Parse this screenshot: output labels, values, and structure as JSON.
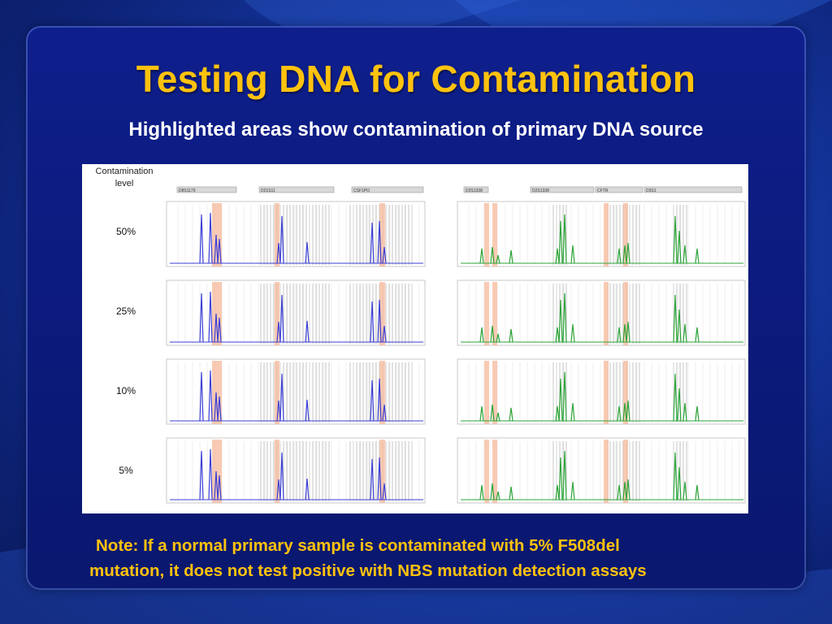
{
  "slide": {
    "title": "Testing DNA for Contamination",
    "subtitle": "Highlighted areas show contamination of primary DNA source",
    "note_line1": "Note: If a normal primary sample is contaminated with 5% F508del",
    "note_line2": "mutation, it does not test positive with NBS mutation detection assays"
  },
  "figure": {
    "header": [
      "Contamination",
      "level"
    ],
    "levels": [
      "50%",
      "25%",
      "10%",
      "5%"
    ],
    "left_markers": [
      "D8S1179",
      "D21S11",
      "CSF1PO"
    ],
    "right_markers": [
      "D2S1338",
      "D2S1338",
      "CFTR",
      "D3S1"
    ],
    "highlight_color": "#f6b89a",
    "left_trace_color": "#3b3fd6",
    "right_trace_color": "#2ea63a"
  }
}
